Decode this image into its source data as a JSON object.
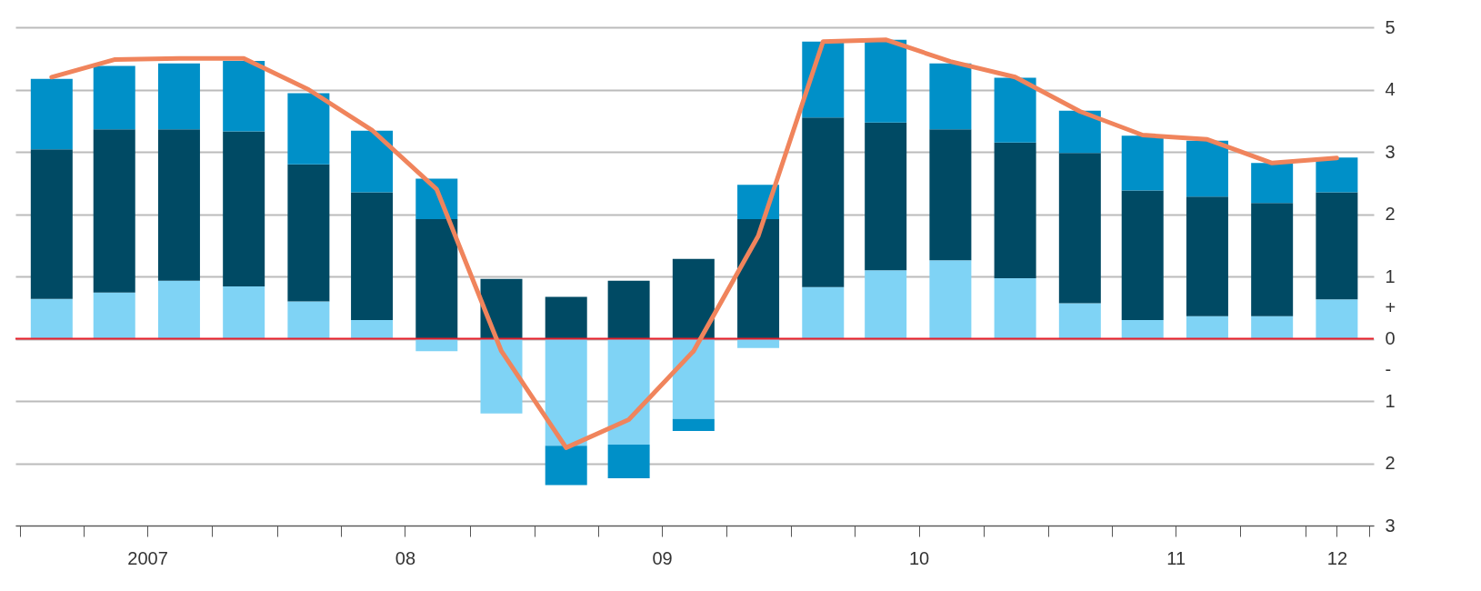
{
  "chart_data": {
    "type": "bar",
    "stacked": true,
    "x": [
      "2007-02-15",
      "2007-05-15",
      "2007-08-15",
      "2007-11-15",
      "2008-02-15",
      "2008-05-15",
      "2008-08-15",
      "2008-11-15",
      "2009-02-15",
      "2009-05-15",
      "2009-08-15",
      "2009-11-15",
      "2010-02-15",
      "2010-05-15",
      "2010-08-15",
      "2010-11-15",
      "2011-02-15",
      "2011-05-15",
      "2011-08-15",
      "2011-11-15",
      "2012-02-15"
    ],
    "series": [
      {
        "color": "#7fd3f5",
        "values": [
          0.64,
          0.74,
          0.93,
          0.84,
          0.6,
          0.3,
          -0.2,
          -1.2,
          -1.72,
          -1.7,
          -1.29,
          -0.15,
          0.83,
          1.1,
          1.26,
          0.97,
          0.57,
          0.3,
          0.36,
          0.36,
          0.63
        ]
      },
      {
        "color": "#004a64",
        "values": [
          2.4,
          2.62,
          2.43,
          2.49,
          2.2,
          2.05,
          1.92,
          0.96,
          0.67,
          0.93,
          1.28,
          1.92,
          2.72,
          2.37,
          2.1,
          2.18,
          2.41,
          2.08,
          1.92,
          1.82,
          1.72
        ]
      },
      {
        "color": "#0090c8",
        "values": [
          1.13,
          1.02,
          1.06,
          1.13,
          1.14,
          0.99,
          0.65,
          null,
          -0.63,
          -0.54,
          -0.19,
          0.55,
          1.22,
          1.33,
          1.06,
          1.04,
          0.68,
          0.88,
          0.9,
          0.64,
          0.56
        ]
      },
      {
        "type": "line",
        "color": "#f0845c",
        "values": [
          4.2,
          4.48,
          4.5,
          4.5,
          4.0,
          3.35,
          2.4,
          -0.2,
          -1.75,
          -1.3,
          -0.2,
          1.65,
          4.77,
          4.8,
          4.45,
          4.2,
          3.65,
          3.27,
          3.2,
          2.82,
          2.9
        ]
      }
    ],
    "xlim": [
      "2007-01-01",
      "2012-04-01"
    ],
    "xticks": [
      {
        "value": "2007-01-01",
        "label": null
      },
      {
        "value": "2007-04-01",
        "label": null
      },
      {
        "value": "2007-07-01",
        "label": "2007"
      },
      {
        "value": "2007-10-01",
        "label": null
      },
      {
        "value": "2008-01-01",
        "label": null
      },
      {
        "value": "2008-04-01",
        "label": null
      },
      {
        "value": "2008-07-01",
        "label": "08"
      },
      {
        "value": "2008-10-01",
        "label": null
      },
      {
        "value": "2009-01-01",
        "label": null
      },
      {
        "value": "2009-04-01",
        "label": null
      },
      {
        "value": "2009-07-01",
        "label": "09"
      },
      {
        "value": "2009-10-01",
        "label": null
      },
      {
        "value": "2010-01-01",
        "label": null
      },
      {
        "value": "2010-04-01",
        "label": null
      },
      {
        "value": "2010-07-01",
        "label": "10"
      },
      {
        "value": "2010-10-01",
        "label": null
      },
      {
        "value": "2011-01-01",
        "label": null
      },
      {
        "value": "2011-04-01",
        "label": null
      },
      {
        "value": "2011-07-01",
        "label": "11"
      },
      {
        "value": "2011-10-01",
        "label": null
      },
      {
        "value": "2012-01-01",
        "label": null
      },
      {
        "value": "2012-02-15",
        "label": "12"
      },
      {
        "value": "2012-04-01",
        "label": null
      }
    ],
    "ylim": [
      -3,
      5
    ],
    "yticks": [
      5,
      4,
      3,
      2,
      1,
      {
        "value": 0.5,
        "label": "+"
      },
      0,
      {
        "value": -0.5,
        "label": "-"
      },
      {
        "value": -1,
        "label": "1"
      },
      {
        "value": -2,
        "label": "2"
      },
      {
        "value": -3,
        "label": "3"
      }
    ],
    "ref_lines": [
      {
        "axis": "y",
        "value": 0,
        "color": "#e8202a"
      }
    ],
    "grid": "y",
    "legend": false,
    "marker": "none",
    "line_style": "solid"
  }
}
